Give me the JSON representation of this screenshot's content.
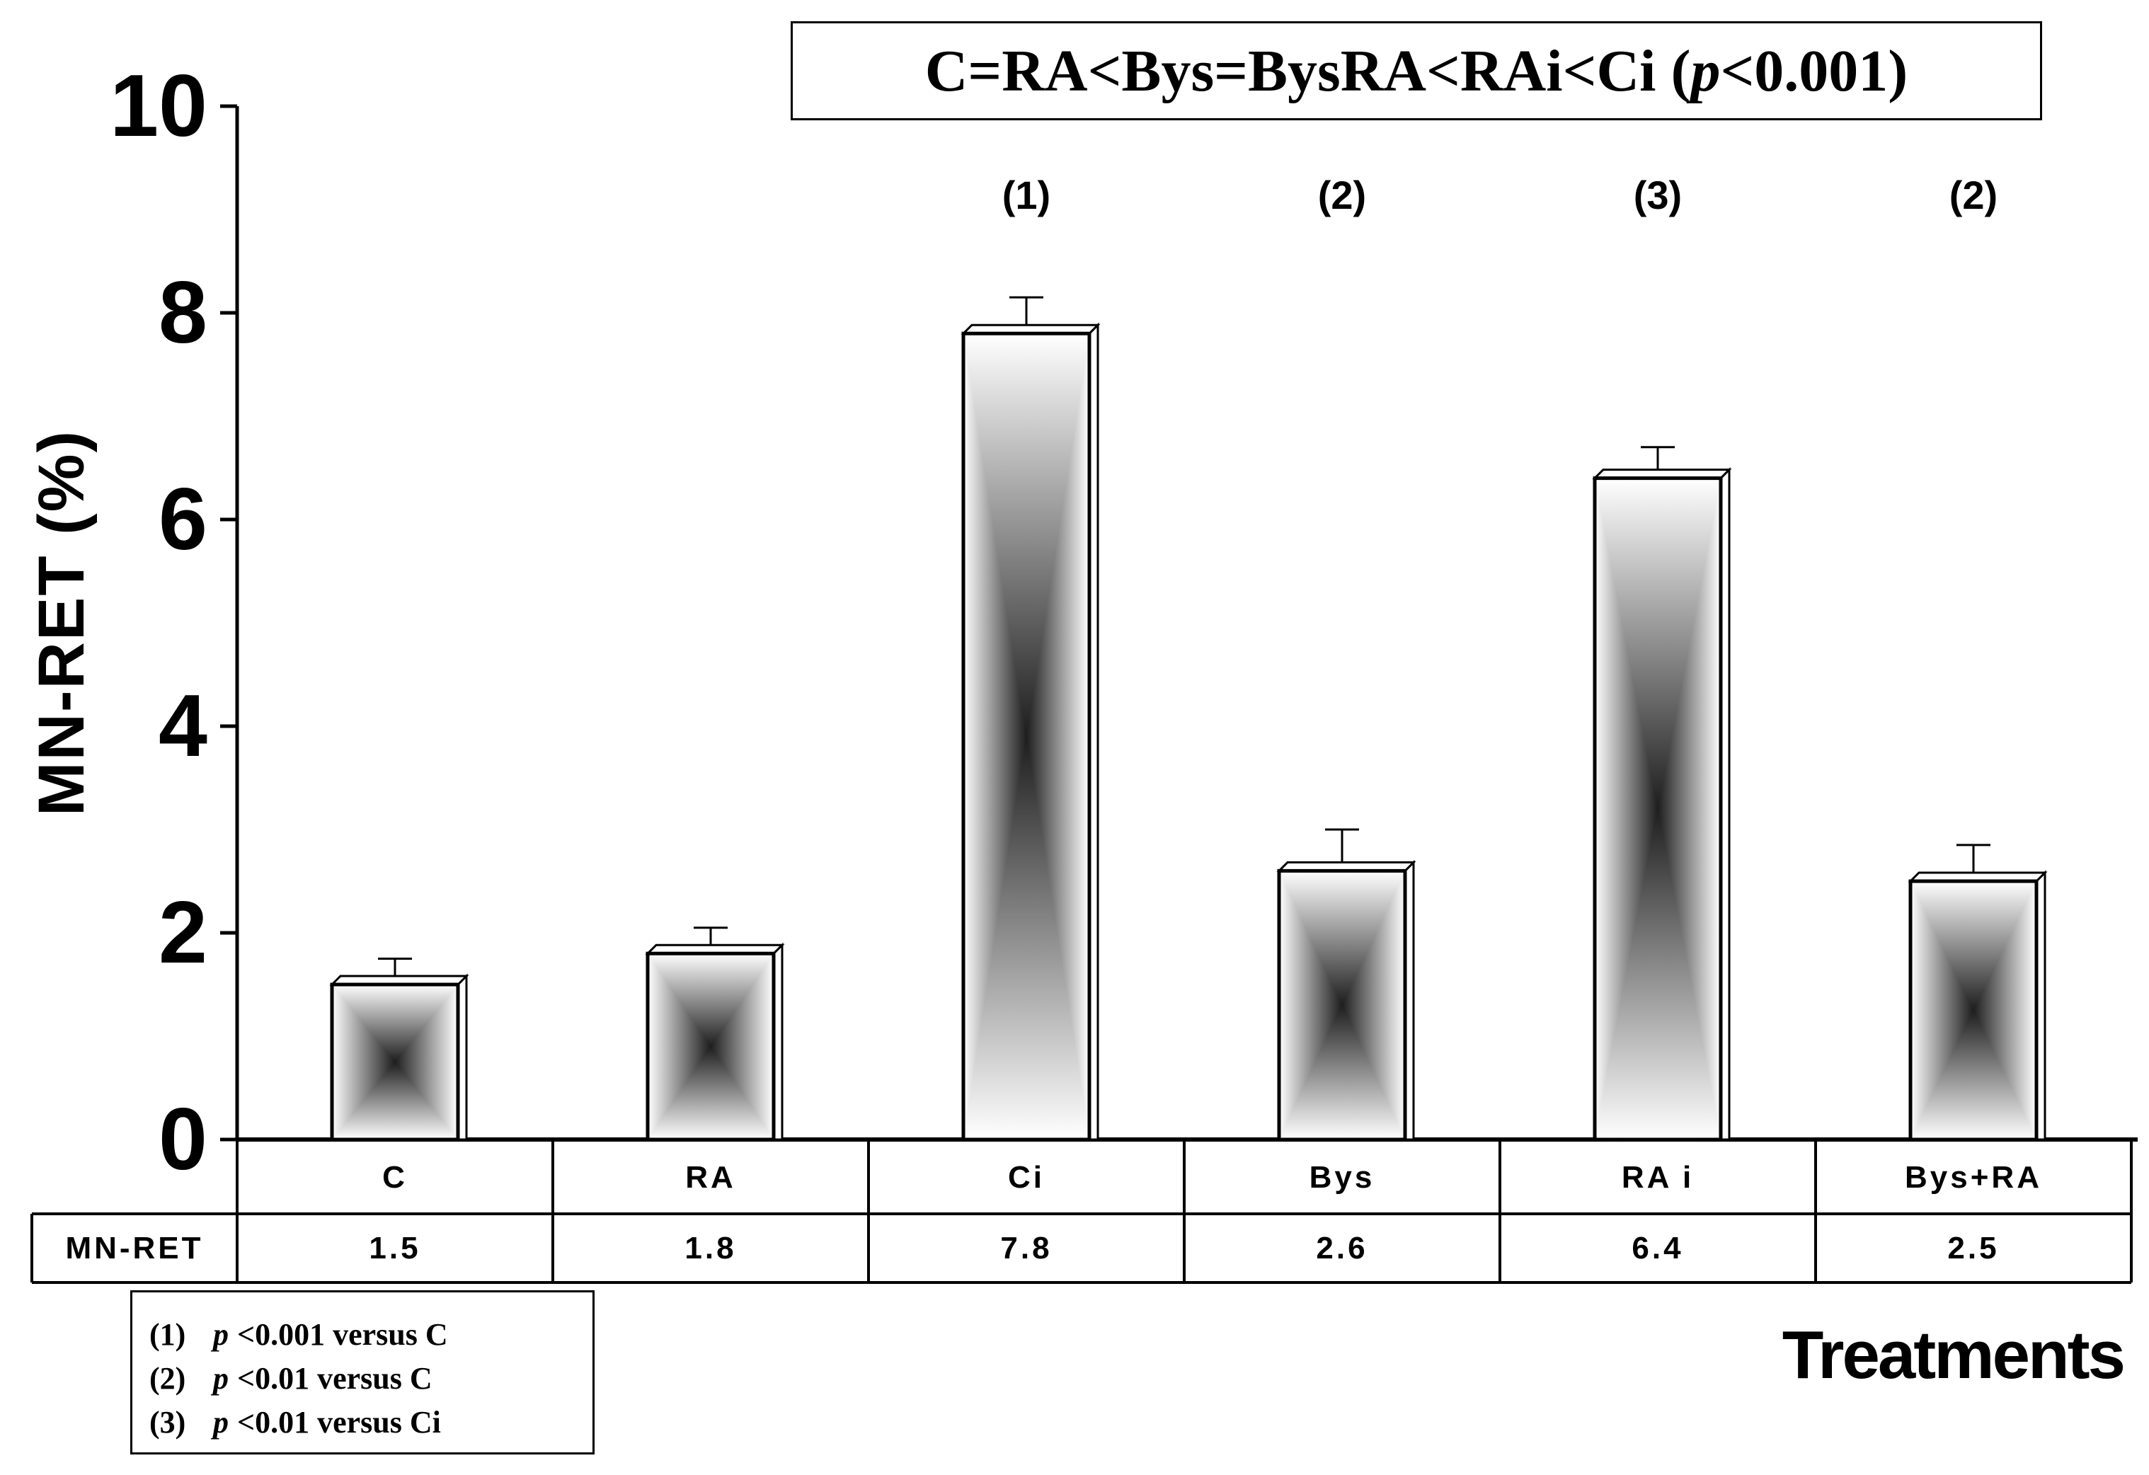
{
  "title": {
    "prefix": "C=RA<Bys=BysRA<RAi<Ci (",
    "p": "p",
    "suffix": " <0.001)"
  },
  "chart_data": {
    "type": "bar",
    "categories": [
      "C",
      "RA",
      "Ci",
      "Bys",
      "RA i",
      "Bys+RA"
    ],
    "values": [
      1.5,
      1.8,
      7.8,
      2.6,
      6.4,
      2.5
    ],
    "error_tops": [
      1.75,
      2.05,
      8.15,
      3.0,
      6.7,
      2.85
    ],
    "significance": [
      "",
      "",
      "(1)",
      "(2)",
      "(3)",
      "(2)"
    ],
    "ylabel": "MN-RET (%)",
    "xlabel": "Treatments",
    "ylim": [
      0,
      10
    ],
    "yticks": [
      0,
      2,
      4,
      6,
      8,
      10
    ],
    "table": {
      "row_label": "MN-RET",
      "values": [
        "1.5",
        "1.8",
        "7.8",
        "2.6",
        "6.4",
        "2.5"
      ]
    }
  },
  "legend": [
    {
      "num": "(1)",
      "p": "p",
      "text": "<0.001 versus C"
    },
    {
      "num": "(2)",
      "p": "p",
      "text": "<0.01   versus C"
    },
    {
      "num": "(3)",
      "p": "p",
      "text": "<0.01  versus Ci"
    }
  ]
}
